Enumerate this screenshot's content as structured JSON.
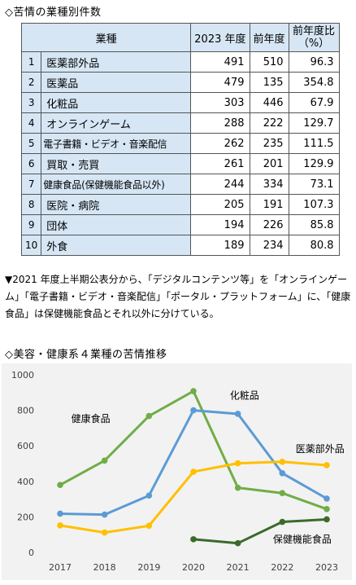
{
  "table_section": {
    "heading": "◇苦情の業種別件数",
    "columns": [
      "業種",
      "2023 年度",
      "前年度",
      "前年度比",
      "（%）"
    ],
    "rows": [
      {
        "rank": "1",
        "industry": "医薬部外品",
        "y2023": "491",
        "prev": "510",
        "ratio": "96.3"
      },
      {
        "rank": "2",
        "industry": "医薬品",
        "y2023": "479",
        "prev": "135",
        "ratio": "354.8"
      },
      {
        "rank": "3",
        "industry": "化粧品",
        "y2023": "303",
        "prev": "446",
        "ratio": "67.9"
      },
      {
        "rank": "4",
        "industry": "オンラインゲーム",
        "y2023": "288",
        "prev": "222",
        "ratio": "129.7"
      },
      {
        "rank": "5",
        "industry": "電子書籍・ビデオ・音楽配信",
        "y2023": "262",
        "prev": "235",
        "ratio": "111.5"
      },
      {
        "rank": "6",
        "industry": "買取・売買",
        "y2023": "261",
        "prev": "201",
        "ratio": "129.9"
      },
      {
        "rank": "7",
        "industry": "健康食品(保健機能食品以外)",
        "y2023": "244",
        "prev": "334",
        "ratio": "73.1"
      },
      {
        "rank": "8",
        "industry": "医院・病院",
        "y2023": "205",
        "prev": "191",
        "ratio": "107.3"
      },
      {
        "rank": "9",
        "industry": "団体",
        "y2023": "194",
        "prev": "226",
        "ratio": "85.8"
      },
      {
        "rank": "10",
        "industry": "外食",
        "y2023": "189",
        "prev": "234",
        "ratio": "80.8"
      }
    ]
  },
  "note": "▼2021 年度上半期公表分から、「デジタルコンテンツ等」を「オンラインゲーム」「電子書籍・ビデオ・音楽配信」「ポータル・プラットフォーム」に、「健康食品」は保健機能食品とそれ以外に分けている。",
  "chart_section": {
    "heading": "◇美容・健康系４業種の苦情推移"
  },
  "chart_data": {
    "type": "line",
    "x": [
      "2017",
      "2018",
      "2019",
      "2020",
      "2021",
      "2022",
      "2023"
    ],
    "ylim": [
      0,
      1000
    ],
    "yticks": [
      "0",
      "200",
      "400",
      "600",
      "800",
      "1000"
    ],
    "grid": false,
    "series": [
      {
        "name": "健康食品",
        "color": "#70ad47",
        "values": [
          380,
          517,
          768,
          908,
          364,
          334,
          244
        ]
      },
      {
        "name": "化粧品",
        "color": "#5b9bd5",
        "values": [
          218,
          213,
          320,
          800,
          780,
          446,
          303
        ]
      },
      {
        "name": "医薬部外品",
        "color": "#ffc000",
        "values": [
          152,
          112,
          150,
          454,
          502,
          510,
          491
        ]
      },
      {
        "name": "保健機能食品",
        "color": "#3a6b2a",
        "values": [
          null,
          null,
          null,
          74,
          52,
          172,
          186
        ]
      }
    ]
  }
}
